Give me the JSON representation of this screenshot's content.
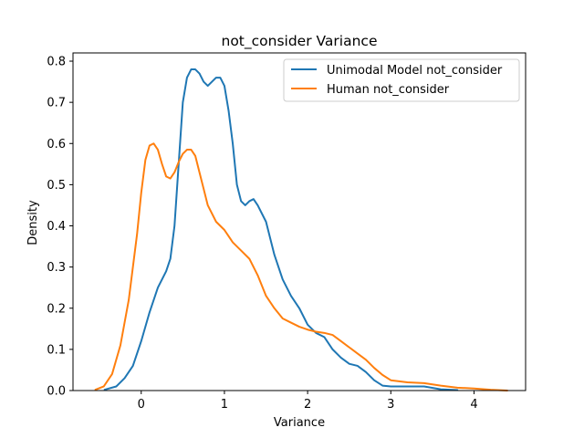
{
  "chart_data": {
    "type": "line",
    "title": "not_consider Variance",
    "xlabel": "Variance",
    "ylabel": "Density",
    "xlim": [
      -0.82,
      4.62
    ],
    "ylim": [
      0,
      0.82
    ],
    "xticks": [
      0,
      1,
      2,
      3,
      4
    ],
    "yticks": [
      0.0,
      0.1,
      0.2,
      0.3,
      0.4,
      0.5,
      0.6,
      0.7,
      0.8
    ],
    "grid": false,
    "legend_position": "top-right",
    "series": [
      {
        "name": "Unimodal Model not_consider",
        "color": "#1f77b4",
        "x": [
          -0.44,
          -0.3,
          -0.2,
          -0.1,
          0.0,
          0.1,
          0.2,
          0.3,
          0.35,
          0.4,
          0.45,
          0.5,
          0.55,
          0.6,
          0.65,
          0.7,
          0.75,
          0.8,
          0.85,
          0.9,
          0.95,
          1.0,
          1.05,
          1.1,
          1.15,
          1.2,
          1.25,
          1.3,
          1.35,
          1.4,
          1.5,
          1.6,
          1.7,
          1.8,
          1.9,
          2.0,
          2.1,
          2.2,
          2.3,
          2.4,
          2.5,
          2.6,
          2.7,
          2.8,
          2.9,
          3.0,
          3.2,
          3.4,
          3.6,
          3.8
        ],
        "y": [
          0.002,
          0.01,
          0.03,
          0.06,
          0.12,
          0.19,
          0.25,
          0.29,
          0.32,
          0.4,
          0.55,
          0.7,
          0.76,
          0.78,
          0.78,
          0.77,
          0.75,
          0.74,
          0.75,
          0.76,
          0.76,
          0.74,
          0.68,
          0.6,
          0.5,
          0.46,
          0.45,
          0.46,
          0.465,
          0.45,
          0.41,
          0.33,
          0.27,
          0.23,
          0.2,
          0.16,
          0.14,
          0.13,
          0.1,
          0.08,
          0.065,
          0.06,
          0.045,
          0.025,
          0.012,
          0.01,
          0.01,
          0.01,
          0.003,
          0.001
        ]
      },
      {
        "name": "Human not_consider",
        "color": "#ff7f0e",
        "x": [
          -0.55,
          -0.45,
          -0.35,
          -0.25,
          -0.15,
          -0.05,
          0.0,
          0.05,
          0.1,
          0.15,
          0.2,
          0.25,
          0.3,
          0.35,
          0.4,
          0.45,
          0.5,
          0.55,
          0.6,
          0.65,
          0.7,
          0.75,
          0.8,
          0.9,
          1.0,
          1.1,
          1.2,
          1.3,
          1.4,
          1.5,
          1.6,
          1.7,
          1.8,
          1.9,
          2.0,
          2.1,
          2.2,
          2.3,
          2.4,
          2.5,
          2.6,
          2.7,
          2.8,
          2.9,
          3.0,
          3.2,
          3.4,
          3.6,
          3.8,
          4.0,
          4.2,
          4.4
        ],
        "y": [
          0.002,
          0.01,
          0.04,
          0.11,
          0.22,
          0.38,
          0.48,
          0.56,
          0.595,
          0.6,
          0.585,
          0.55,
          0.52,
          0.515,
          0.53,
          0.555,
          0.575,
          0.585,
          0.585,
          0.57,
          0.53,
          0.49,
          0.45,
          0.41,
          0.39,
          0.36,
          0.34,
          0.32,
          0.28,
          0.23,
          0.2,
          0.175,
          0.165,
          0.155,
          0.148,
          0.143,
          0.14,
          0.135,
          0.12,
          0.105,
          0.09,
          0.075,
          0.055,
          0.038,
          0.025,
          0.02,
          0.018,
          0.012,
          0.007,
          0.005,
          0.002,
          0.0
        ]
      }
    ]
  }
}
